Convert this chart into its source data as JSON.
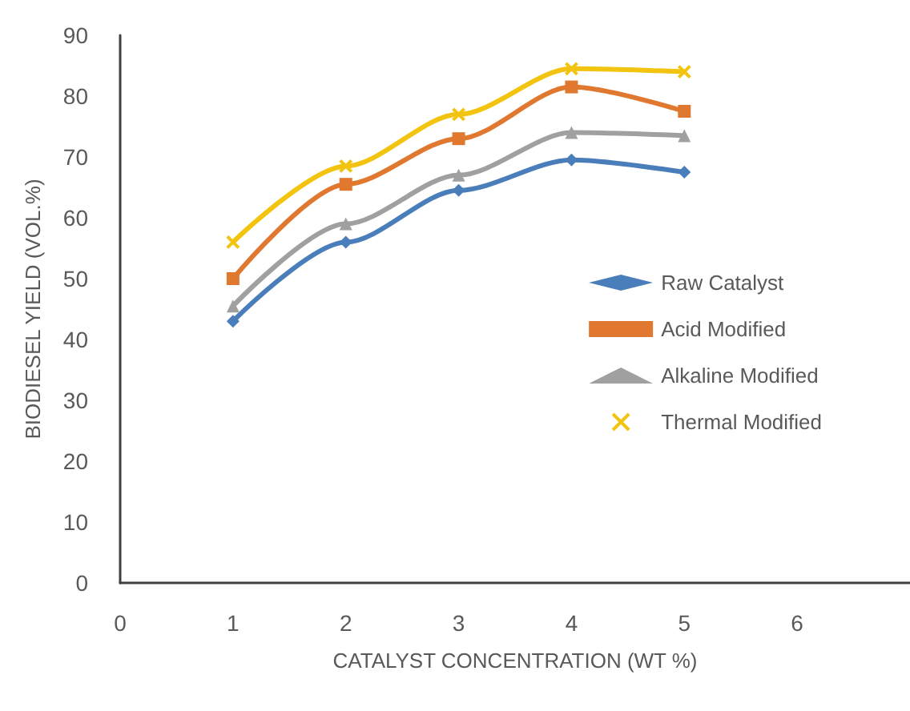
{
  "chart_data": {
    "type": "line",
    "xlabel": "CATALYST CONCENTRATION (WT %)",
    "ylabel": "BIODIESEL YIELD (VOL.%)",
    "x": [
      1,
      2,
      3,
      4,
      5
    ],
    "series": [
      {
        "name": "Raw Catalyst",
        "color": "#4a7ebb",
        "marker": "diamond",
        "values": [
          43,
          56,
          64.5,
          69.5,
          67.5
        ]
      },
      {
        "name": "Acid Modified",
        "color": "#e0782f",
        "marker": "square",
        "values": [
          50,
          65.5,
          73,
          81.5,
          77.5
        ]
      },
      {
        "name": "Alkaline Modified",
        "color": "#a0a0a0",
        "marker": "triangle",
        "values": [
          45.5,
          59,
          67,
          74,
          73.5
        ]
      },
      {
        "name": "Thermal Modified",
        "color": "#f2c40f",
        "marker": "cross",
        "values": [
          56,
          68.5,
          77,
          84.5,
          84
        ]
      }
    ],
    "xlim": [
      0,
      7
    ],
    "xticks": [
      0,
      1,
      2,
      3,
      4,
      5,
      6
    ],
    "ylim": [
      0,
      90
    ],
    "yticks": [
      0,
      10,
      20,
      30,
      40,
      50,
      60,
      70,
      80,
      90
    ],
    "grid": false,
    "legend": "right"
  }
}
